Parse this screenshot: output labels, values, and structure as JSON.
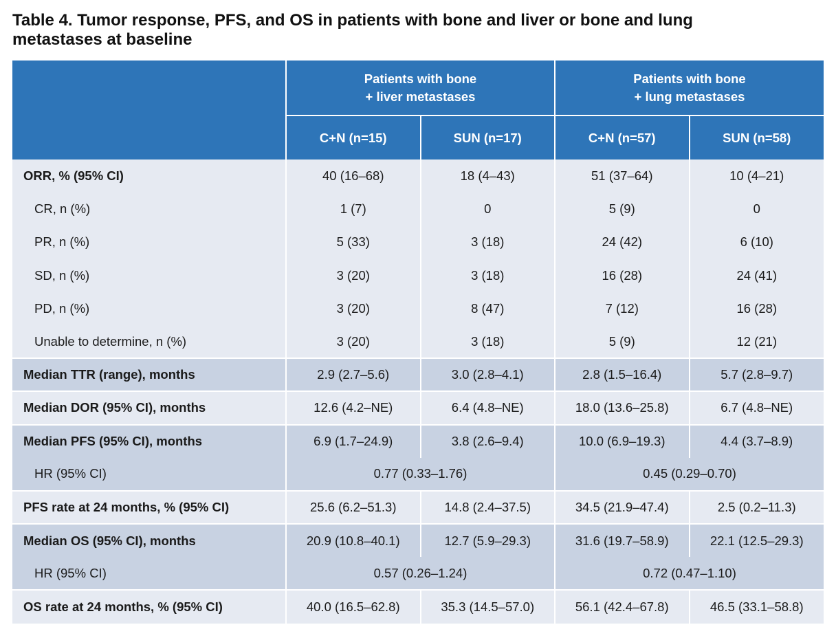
{
  "title_line1": "Table 4. Tumor response, PFS, and OS in patients with bone and liver or bone and lung",
  "title_line2": "metastases at baseline",
  "groups": [
    "Patients with bone\n+ liver metastases",
    "Patients with bone\n+ lung metastases"
  ],
  "groups_lines": [
    [
      "Patients with bone",
      "+ liver metastases"
    ],
    [
      "Patients with bone",
      "+ lung metastases"
    ]
  ],
  "columns": [
    "C+N (n=15)",
    "SUN (n=17)",
    "C+N (n=57)",
    "SUN (n=58)"
  ],
  "rows": [
    {
      "label": "ORR, % (95% CI)",
      "values": [
        "40 (16–68)",
        "18 (4–43)",
        "51 (37–64)",
        "10 (4–21)"
      ]
    },
    {
      "label": "CR, n (%)",
      "values": [
        "1 (7)",
        "0",
        "5 (9)",
        "0"
      ]
    },
    {
      "label": "PR, n (%)",
      "values": [
        "5 (33)",
        "3 (18)",
        "24 (42)",
        "6 (10)"
      ]
    },
    {
      "label": "SD, n (%)",
      "values": [
        "3 (20)",
        "3 (18)",
        "16 (28)",
        "24 (41)"
      ]
    },
    {
      "label": "PD, n (%)",
      "values": [
        "3 (20)",
        "8 (47)",
        "7 (12)",
        "16 (28)"
      ]
    },
    {
      "label": "Unable to determine, n (%)",
      "values": [
        "3 (20)",
        "3 (18)",
        "5 (9)",
        "12 (21)"
      ]
    },
    {
      "label": "Median TTR (range), months",
      "values": [
        "2.9 (2.7–5.6)",
        "3.0 (2.8–4.1)",
        "2.8 (1.5–16.4)",
        "5.7 (2.8–9.7)"
      ]
    },
    {
      "label": "Median DOR (95% CI), months",
      "values": [
        "12.6 (4.2–NE)",
        "6.4 (4.8–NE)",
        "18.0 (13.6–25.8)",
        "6.7 (4.8–NE)"
      ]
    },
    {
      "label": "Median PFS (95% CI), months",
      "values": [
        "6.9  (1.7–24.9)",
        "3.8 (2.6–9.4)",
        "10.0 (6.9–19.3)",
        "4.4 (3.7–8.9)"
      ]
    },
    {
      "label": "HR (95% CI)",
      "merged": [
        "0.77 (0.33–1.76)",
        "0.45 (0.29–0.70)"
      ]
    },
    {
      "label": "PFS rate at 24 months, % (95% CI)",
      "values": [
        "25.6 (6.2–51.3)",
        "14.8 (2.4–37.5)",
        "34.5 (21.9–47.4)",
        "2.5 (0.2–11.3)"
      ]
    },
    {
      "label": "Median OS (95% CI), months",
      "values": [
        "20.9 (10.8–40.1)",
        "12.7 (5.9–29.3)",
        "31.6 (19.7–58.9)",
        "22.1  (12.5–29.3)"
      ]
    },
    {
      "label": "HR (95% CI)",
      "merged": [
        "0.57 (0.26–1.24)",
        "0.72 (0.47–1.10)"
      ]
    },
    {
      "label": "OS rate at 24 months, % (95% CI)",
      "values": [
        "40.0 (16.5–62.8)",
        "35.3 (14.5–57.0)",
        "56.1 (42.4–67.8)",
        "46.5 (33.1–58.8)"
      ]
    }
  ]
}
